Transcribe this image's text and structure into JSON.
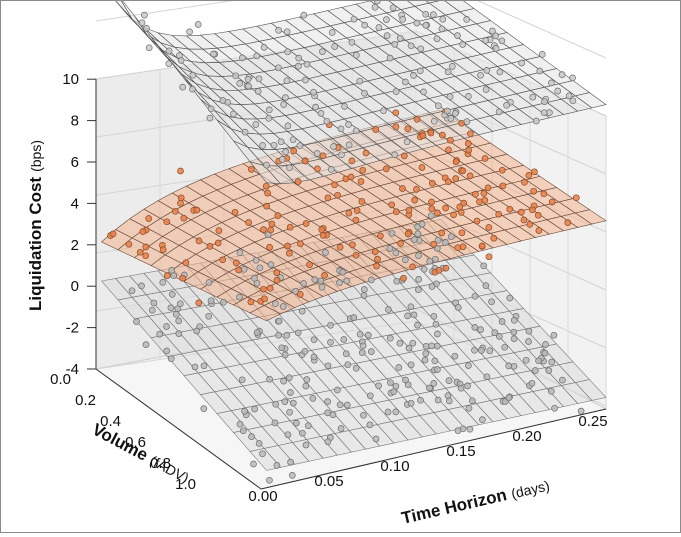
{
  "chart_data": {
    "type": "surface3d",
    "axes": {
      "x": {
        "label": "Time Horizon",
        "unit": "(days)",
        "ticks": [
          "0.00",
          "0.05",
          "0.10",
          "0.15",
          "0.20",
          "0.25"
        ],
        "range": [
          0,
          0.25
        ]
      },
      "y": {
        "label": "Volume",
        "unit": "(fADV)",
        "ticks": [
          "0.0",
          "0.2",
          "0.4",
          "0.6",
          "0.8",
          "1.0"
        ],
        "range": [
          0,
          1.0
        ]
      },
      "z": {
        "label": "Liquidation Cost",
        "unit": "(bps)",
        "ticks": [
          "-4",
          "-2",
          "0",
          "2",
          "4",
          "6",
          "8",
          "10"
        ],
        "range": [
          -4,
          10
        ]
      }
    },
    "series": [
      {
        "color": "#888888",
        "surface": "upper fitted cost surface rising to ~10 bps as time horizon approaches 0 at low volume, flattening to ~6.5 bps at T=0.25",
        "sample_points": [
          [
            0.01,
            0.1,
            6.0
          ],
          [
            0.05,
            0.1,
            5.0
          ],
          [
            0.1,
            0.1,
            5.8
          ],
          [
            0.15,
            0.1,
            6.2
          ],
          [
            0.2,
            0.1,
            6.6
          ],
          [
            0.25,
            0.1,
            6.8
          ]
        ]
      },
      {
        "color": "#e8804a",
        "surface": "middle fitted cost surface near 0–3 bps",
        "sample_points": [
          [
            0.01,
            0.1,
            0.3
          ],
          [
            0.05,
            0.1,
            1.2
          ],
          [
            0.1,
            0.1,
            1.8
          ],
          [
            0.15,
            0.1,
            2.0
          ],
          [
            0.2,
            0.1,
            2.3
          ],
          [
            0.25,
            0.1,
            2.5
          ]
        ]
      },
      {
        "color": "#888888",
        "surface": "lower fitted cost surface near -1 to -4 bps",
        "sample_points": [
          [
            0.01,
            0.1,
            -1.0
          ],
          [
            0.05,
            0.5,
            -2.0
          ],
          [
            0.1,
            0.8,
            -3.0
          ],
          [
            0.15,
            1.0,
            -3.5
          ],
          [
            0.2,
            0.9,
            -3.2
          ],
          [
            0.25,
            0.8,
            -2.8
          ]
        ]
      }
    ],
    "grid": true,
    "legend": "none"
  }
}
